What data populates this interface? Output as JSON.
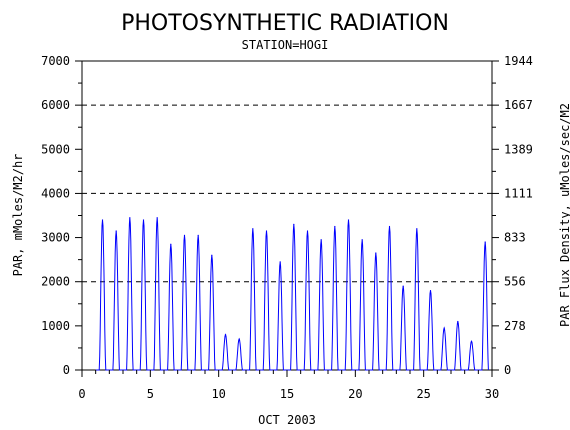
{
  "chart_data": {
    "type": "line",
    "title": "PHOTOSYNTHETIC RADIATION",
    "subtitle": "STATION=HOGI",
    "xlabel": "OCT 2003",
    "ylabel": "PAR, mMoles/M2/hr",
    "y2label": "PAR Flux Density, uMoles/sec/M2",
    "xlim": [
      0,
      30
    ],
    "ylim": [
      0,
      7000
    ],
    "x_ticks": [
      0,
      5,
      10,
      15,
      20,
      25,
      30
    ],
    "x_tick_labels": [
      "0",
      "5",
      "10",
      "15",
      "20",
      "25",
      "30"
    ],
    "y_ticks": [
      0,
      1000,
      2000,
      3000,
      4000,
      5000,
      6000,
      7000
    ],
    "y_tick_labels": [
      "0",
      "1000",
      "2000",
      "3000",
      "4000",
      "5000",
      "6000",
      "7000"
    ],
    "y2_tick_labels": [
      "0",
      "278",
      "556",
      "833",
      "1111",
      "1389",
      "1667",
      "1944"
    ],
    "grid": "dashed horizontal lines at 2000, 4000, 6000",
    "series": [
      {
        "color": "#0000ff",
        "daily_peaks": [
          {
            "day": 1,
            "peak": 3400
          },
          {
            "day": 2,
            "peak": 3150
          },
          {
            "day": 3,
            "peak": 3450
          },
          {
            "day": 4,
            "peak": 3400
          },
          {
            "day": 5,
            "peak": 3450
          },
          {
            "day": 6,
            "peak": 2850
          },
          {
            "day": 7,
            "peak": 3050
          },
          {
            "day": 8,
            "peak": 3050
          },
          {
            "day": 9,
            "peak": 2600
          },
          {
            "day": 10,
            "peak": 800
          },
          {
            "day": 11,
            "peak": 700
          },
          {
            "day": 12,
            "peak": 3200
          },
          {
            "day": 13,
            "peak": 3150
          },
          {
            "day": 14,
            "peak": 2450
          },
          {
            "day": 15,
            "peak": 3300
          },
          {
            "day": 16,
            "peak": 3150
          },
          {
            "day": 17,
            "peak": 2950
          },
          {
            "day": 18,
            "peak": 3250
          },
          {
            "day": 19,
            "peak": 3400
          },
          {
            "day": 20,
            "peak": 2950
          },
          {
            "day": 21,
            "peak": 2650
          },
          {
            "day": 22,
            "peak": 3250
          },
          {
            "day": 23,
            "peak": 1900
          },
          {
            "day": 24,
            "peak": 3200
          },
          {
            "day": 25,
            "peak": 1800
          },
          {
            "day": 26,
            "peak": 950
          },
          {
            "day": 27,
            "peak": 1100
          },
          {
            "day": 28,
            "peak": 650
          },
          {
            "day": 29,
            "peak": 2900
          }
        ]
      }
    ]
  }
}
